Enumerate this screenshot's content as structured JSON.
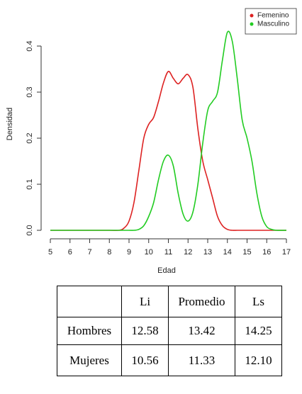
{
  "chart_data": {
    "type": "line",
    "xlabel": "Edad",
    "ylabel": "Densidad",
    "x": [
      5,
      6,
      7,
      8,
      8.5,
      8.75,
      9,
      9.25,
      9.5,
      9.75,
      10,
      10.25,
      10.5,
      10.75,
      11,
      11.25,
      11.5,
      11.75,
      12,
      12.25,
      12.5,
      12.75,
      13,
      13.25,
      13.5,
      13.75,
      14,
      14.25,
      14.5,
      14.75,
      15,
      15.25,
      15.5,
      15.75,
      16,
      16.25,
      16.5,
      17
    ],
    "series": [
      {
        "name": "Femenino",
        "color": "#dd2222",
        "values": [
          0,
          0,
          0,
          0,
          0,
          0.005,
          0.02,
          0.06,
          0.13,
          0.2,
          0.23,
          0.245,
          0.28,
          0.32,
          0.345,
          0.33,
          0.318,
          0.33,
          0.338,
          0.31,
          0.22,
          0.15,
          0.11,
          0.07,
          0.03,
          0.01,
          0.002,
          0,
          0,
          0,
          0,
          0,
          0,
          0,
          0,
          0,
          0,
          0
        ]
      },
      {
        "name": "Masculino",
        "color": "#22cc22",
        "values": [
          0,
          0,
          0,
          0,
          0,
          0,
          0,
          0,
          0.002,
          0.01,
          0.03,
          0.06,
          0.11,
          0.15,
          0.163,
          0.14,
          0.08,
          0.035,
          0.02,
          0.04,
          0.1,
          0.19,
          0.26,
          0.28,
          0.3,
          0.37,
          0.43,
          0.41,
          0.33,
          0.24,
          0.2,
          0.15,
          0.08,
          0.03,
          0.008,
          0.002,
          0,
          0
        ]
      }
    ],
    "xlim": [
      5,
      17
    ],
    "ylim": [
      0,
      0.43
    ],
    "xticks": [
      5,
      6,
      7,
      8,
      9,
      10,
      11,
      12,
      13,
      14,
      15,
      16,
      17
    ],
    "yticks": [
      {
        "value": 0,
        "label": "0.0"
      },
      0.1,
      0.2,
      0.3,
      0.4
    ],
    "legend": "top-right",
    "grid": false
  },
  "table": {
    "header": [
      "Li",
      "Promedio",
      "Ls"
    ],
    "rows": [
      [
        "Hombres",
        "12.58",
        "13.42",
        "14.25"
      ],
      [
        "Mujeres",
        "10.56",
        "11.33",
        "12.10"
      ]
    ]
  }
}
